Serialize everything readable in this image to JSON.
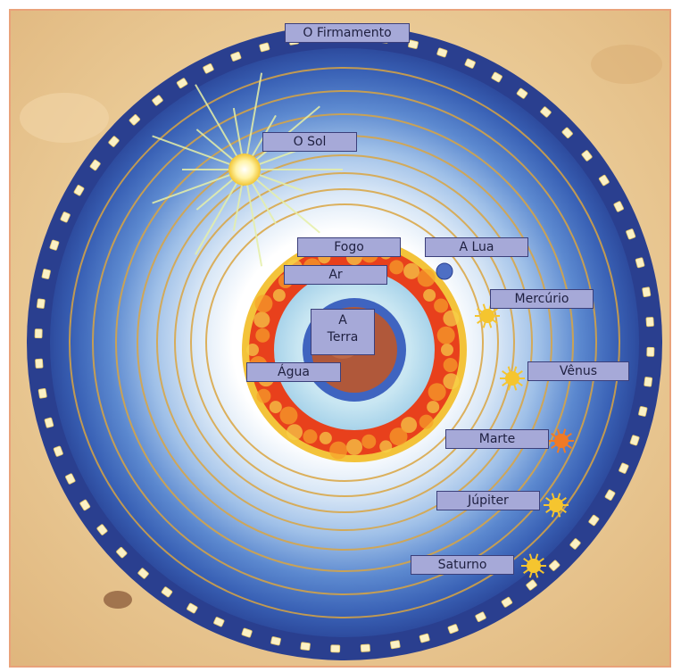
{
  "labels": {
    "firmamento": "O Firmamento",
    "sol": "O Sol",
    "fogo": "Fogo",
    "lua": "A Lua",
    "ar": "Ar",
    "mercurio": "Mercúrio",
    "terra_line1": "A",
    "terra_line2": "Terra",
    "agua": "Água",
    "venus": "Vênus",
    "marte": "Marte",
    "jupiter": "Júpiter",
    "saturno": "Saturno"
  },
  "colors": {
    "background": "#e8c694",
    "firmament": "#2a3f8f",
    "label_fill": "#a6a9d8",
    "label_border": "#3b3f7a",
    "orbit": "#d9a441",
    "fire": "#e8401c",
    "earth": "#b0583a",
    "frame_border": "#e9a27a"
  }
}
